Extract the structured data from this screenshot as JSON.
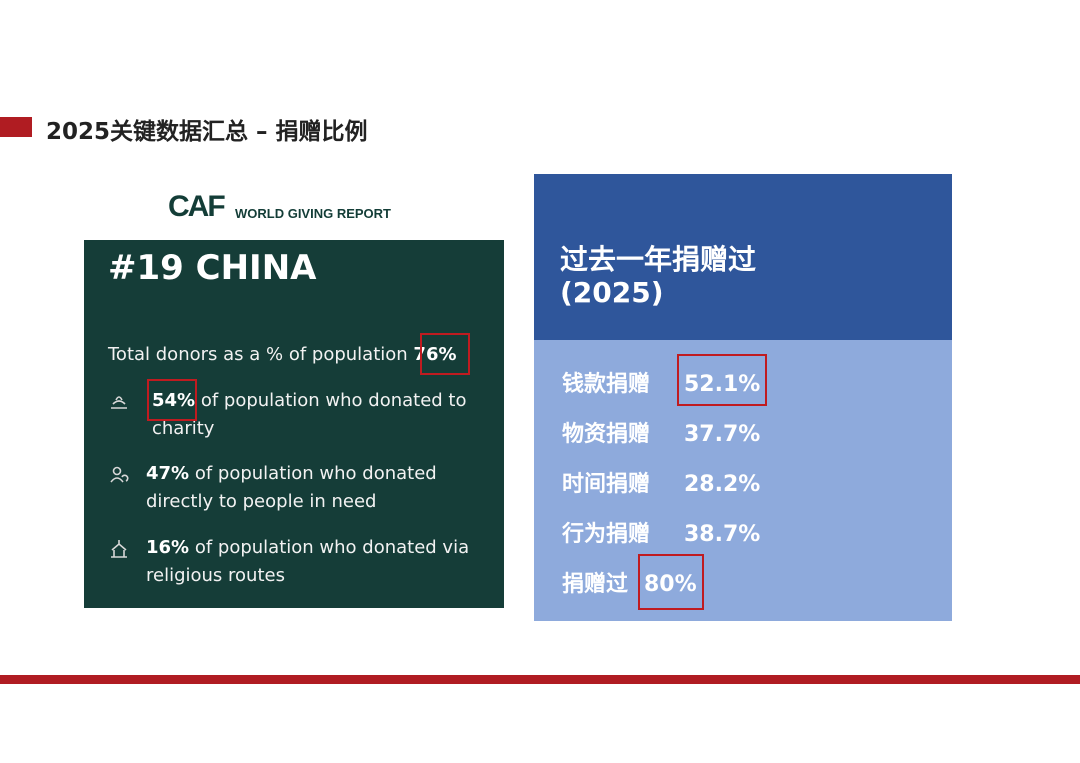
{
  "slide": {
    "title": "2025关键数据汇总 – 捐赠比例"
  },
  "caf": {
    "logo": "CAF",
    "subtitle": "WORLD GIVING REPORT"
  },
  "left_card": {
    "headline": "#19 CHINA",
    "total_label": "Total donors as a % of population",
    "total_value": "76%",
    "items": [
      {
        "icon": "hands-icon",
        "value": "54%",
        "text": "of population who donated to",
        "text2": "charity"
      },
      {
        "icon": "people-icon",
        "value": "47%",
        "text": "of population who donated",
        "text2": "directly to people in need"
      },
      {
        "icon": "temple-icon",
        "value": "16%",
        "text": "of population who donated via",
        "text2": "religious routes"
      }
    ]
  },
  "right_card": {
    "title_line1": "过去一年捐赠过",
    "title_line2": "(2025)",
    "stats": [
      {
        "label": "钱款捐赠",
        "value": "52.1%"
      },
      {
        "label": "物资捐赠",
        "value": "37.7%"
      },
      {
        "label": "时间捐赠",
        "value": "28.2%"
      },
      {
        "label": "行为捐赠",
        "value": "38.7%"
      },
      {
        "label": "捐赠过",
        "value": "80%"
      }
    ]
  },
  "colors": {
    "accent_red": "#b01c22",
    "green_card": "#153d38",
    "blue_dark": "#2f569b",
    "blue_light": "#8eaadc"
  }
}
